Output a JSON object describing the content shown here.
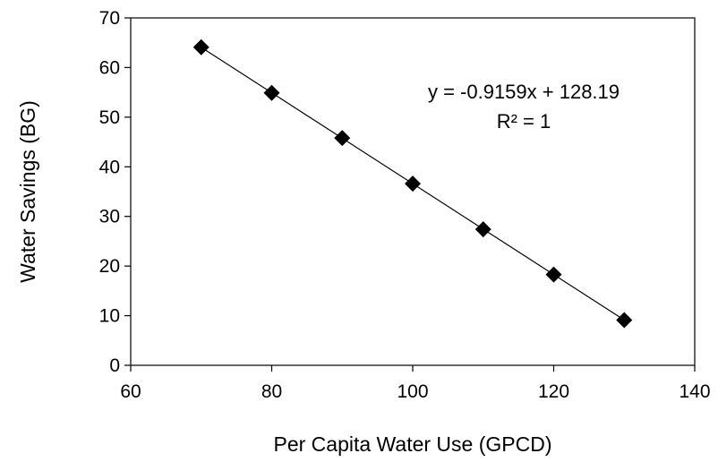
{
  "chart_data": {
    "type": "scatter",
    "title": "",
    "xlabel": "Per Capita Water Use (GPCD)",
    "ylabel": "Water Savings (BG)",
    "xlim": [
      60,
      140
    ],
    "ylim": [
      0,
      70
    ],
    "xticks": [
      60,
      80,
      100,
      120,
      140
    ],
    "yticks": [
      0,
      10,
      20,
      30,
      40,
      50,
      60,
      70
    ],
    "grid": false,
    "legend": "none",
    "marker": "diamond",
    "marker_color": "#000000",
    "trendline": {
      "type": "linear",
      "slope": -0.9159,
      "intercept": 128.19,
      "color": "#000000"
    },
    "series": [
      {
        "x": [
          70,
          80,
          90,
          100,
          110,
          120,
          130
        ],
        "y": [
          64.1,
          54.9,
          45.8,
          36.6,
          27.4,
          18.3,
          9.1
        ]
      }
    ],
    "annotations": [
      "y = -0.9159x + 128.19",
      "R² = 1"
    ]
  }
}
